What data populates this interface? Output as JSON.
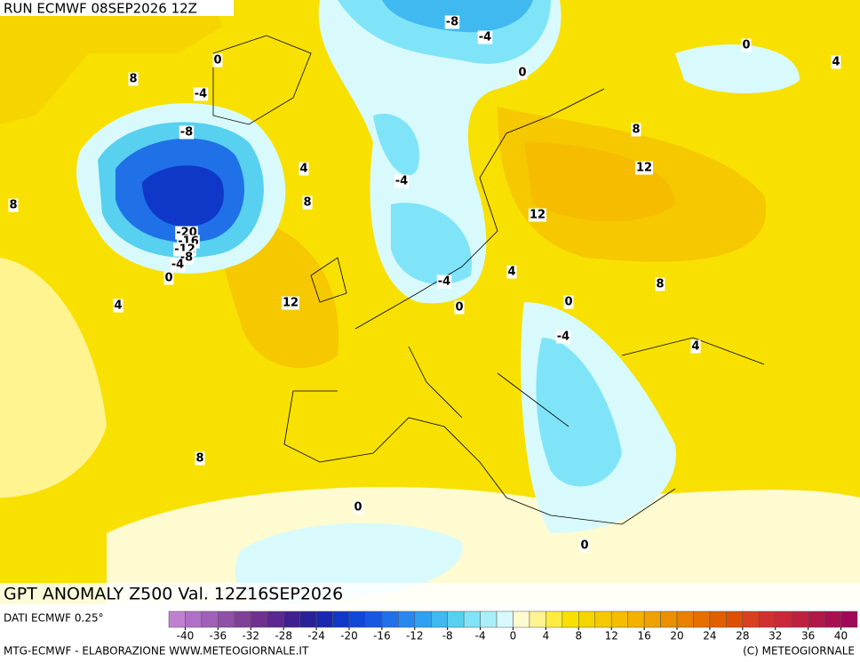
{
  "header": {
    "run": "RUN ECMWF 08SEP2026 12Z"
  },
  "title": "GPT ANOMALY Z500 Val. 12Z16SEP2026",
  "source": "DATI ECMWF 0.25°",
  "footer": {
    "left": "MTG-ECMWF - ELABORAZIONE WWW.METEOGIORNALE.IT",
    "right": "(C) METEOGIORNALE"
  },
  "colorbar": {
    "ticks": [
      -40,
      -36,
      -32,
      -28,
      -24,
      -20,
      -16,
      -12,
      -8,
      -4,
      0,
      4,
      8,
      12,
      16,
      20,
      24,
      28,
      32,
      36,
      40
    ],
    "colors": [
      "#c080d0",
      "#b070c8",
      "#a060b8",
      "#9050a8",
      "#804098",
      "#703090",
      "#5a2890",
      "#402090",
      "#2a2098",
      "#1a28b0",
      "#1038c8",
      "#1048d8",
      "#1858e0",
      "#2070e8",
      "#2888f0",
      "#30a0f0",
      "#40b8f0",
      "#58d0f0",
      "#80e4f8",
      "#a8f0f8",
      "#d8fafc",
      "#fffbd0",
      "#fff490",
      "#ffec40",
      "#f8e000",
      "#f5d400",
      "#f5c800",
      "#f5bc00",
      "#f5b000",
      "#f0a000",
      "#ec9000",
      "#e88000",
      "#e47000",
      "#e06000",
      "#dc5000",
      "#d84020",
      "#d03030",
      "#c82838",
      "#c02040",
      "#b01848",
      "#a81050",
      "#a00858"
    ]
  },
  "contour_labels": [
    -8,
    -4,
    0,
    0,
    8,
    -4,
    -8,
    4,
    8,
    8,
    -20,
    -16,
    -12,
    -8,
    -4,
    0,
    4,
    12,
    -4,
    -4,
    0,
    4,
    12,
    12,
    8,
    0,
    4,
    8,
    0,
    -4,
    4,
    8,
    0,
    0
  ]
}
